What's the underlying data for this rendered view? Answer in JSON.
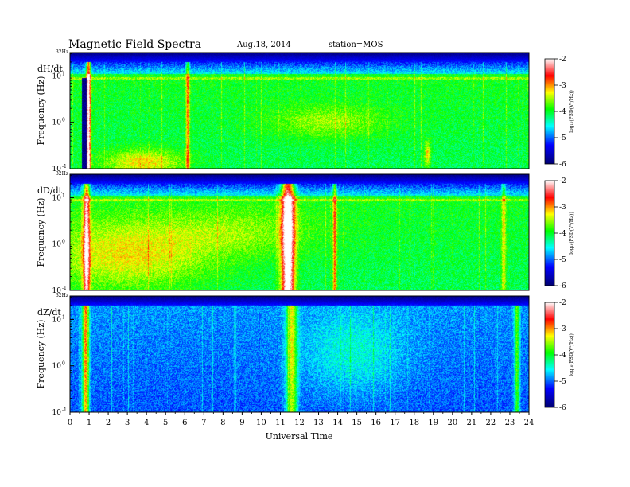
{
  "header": {
    "title": "Magnetic  Field  Spectra",
    "date": "Aug.18, 2014",
    "station": "station=MOS"
  },
  "chart_data": {
    "type": "heatmap",
    "xlabel": "Universal Time",
    "x_ticks": [
      "0",
      "1",
      "2",
      "3",
      "4",
      "5",
      "6",
      "7",
      "8",
      "9",
      "10",
      "11",
      "12",
      "13",
      "14",
      "15",
      "16",
      "17",
      "18",
      "19",
      "20",
      "21",
      "22",
      "23",
      "24"
    ],
    "xlim": [
      0,
      24
    ],
    "ylabel": "Frequency  (Hz)",
    "y_scale": "log",
    "ylim": [
      0.1,
      32
    ],
    "top_label": "32Hz",
    "y_ticks": [
      {
        "value": 10,
        "base": "10",
        "exp": "1"
      },
      {
        "value": 1,
        "base": "10",
        "exp": "0"
      },
      {
        "value": 0.1,
        "base": "10",
        "exp": "-1"
      }
    ],
    "colorbar": {
      "label": "log₁₀(PSD(V²/Hz))",
      "range": [
        -6,
        -2
      ],
      "ticks": [
        "-2",
        "-3",
        "-4",
        "-5",
        "-6"
      ],
      "colors": [
        "#000070",
        "#0000ff",
        "#00ffff",
        "#00ff00",
        "#ffff00",
        "#ff0000",
        "#ffffff"
      ]
    },
    "panels": [
      {
        "name": "dH/dt"
      },
      {
        "name": "dD/dt"
      },
      {
        "name": "dZ/dt"
      }
    ]
  }
}
